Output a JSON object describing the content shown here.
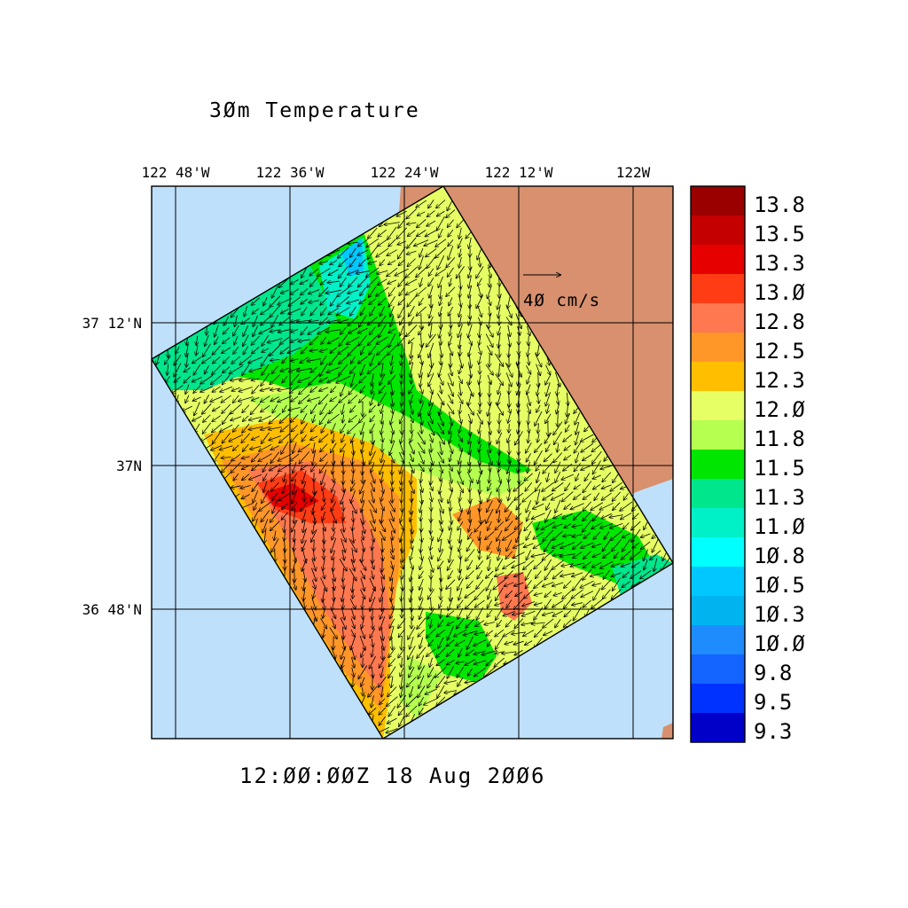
{
  "title": "3Ø m Temperature",
  "title_text": "3Øm Temperature",
  "timestamp": "12:ØØ:ØØZ  18 Aug 2ØØ6",
  "lon_ticks": [
    "122 48'W",
    "122 36'W",
    "122 24'W",
    "122 12'W",
    "122W"
  ],
  "lat_ticks": [
    "37 12'N",
    "37N",
    "36 48'N"
  ],
  "vector_scale_label": "4Ø cm/s",
  "colorbar": {
    "levels": [
      "13.8",
      "13.5",
      "13.3",
      "13.Ø",
      "12.8",
      "12.5",
      "12.3",
      "12.Ø",
      "11.8",
      "11.5",
      "11.3",
      "11.Ø",
      "1Ø.8",
      "1Ø.5",
      "1Ø.3",
      "1Ø.Ø",
      "9.8",
      "9.5",
      "9.3"
    ],
    "colors": [
      "#9b0000",
      "#c40000",
      "#e60000",
      "#ff3c14",
      "#ff7850",
      "#ff9628",
      "#ffbe00",
      "#e6ff64",
      "#b4ff50",
      "#00e600",
      "#00e68c",
      "#00f0c8",
      "#00ffff",
      "#00c8ff",
      "#00b4f0",
      "#1e8cff",
      "#1464ff",
      "#0032ff",
      "#0000c8"
    ]
  },
  "colors": {
    "ocean": "#bfe0fa",
    "land": "#d8906e"
  }
}
